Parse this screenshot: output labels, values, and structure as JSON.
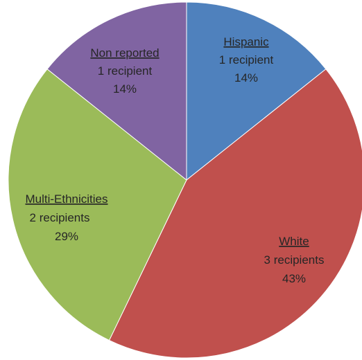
{
  "chart_data": {
    "type": "pie",
    "title": "",
    "slices": [
      {
        "name": "Hispanic",
        "count_label": "1 recipient",
        "pct_label": "14%",
        "value": 1,
        "color": "#4F81BD"
      },
      {
        "name": "White",
        "count_label": "3 recipients",
        "pct_label": "43%",
        "value": 3,
        "color": "#C0504D"
      },
      {
        "name": "Multi-Ethnicities",
        "count_label": "2  recipients",
        "pct_label": "29%",
        "value": 2,
        "color": "#9BBB59"
      },
      {
        "name": "Non reported",
        "count_label": "1 recipient",
        "pct_label": "14%",
        "value": 1,
        "color": "#8064A2"
      }
    ]
  }
}
